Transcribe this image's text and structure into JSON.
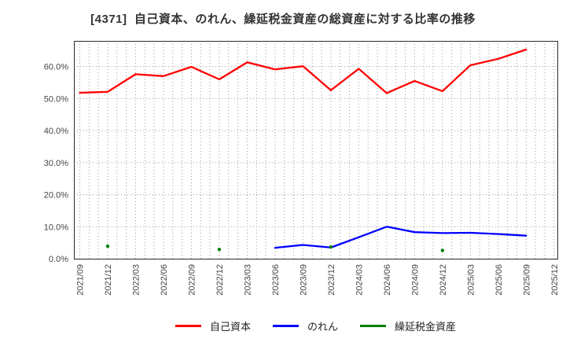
{
  "title": "[4371]  自己資本、のれん、繰延税金資産の総資産に対する比率の推移",
  "chart_data": {
    "type": "line",
    "categories": [
      "2021/09",
      "2021/12",
      "2022/03",
      "2022/06",
      "2022/09",
      "2022/12",
      "2023/03",
      "2023/06",
      "2023/09",
      "2023/12",
      "2024/03",
      "2024/06",
      "2024/09",
      "2024/12",
      "2025/03",
      "2025/06",
      "2025/09",
      "2025/12"
    ],
    "series": [
      {
        "name": "自己資本",
        "color": "#ff0000",
        "style": "line",
        "values": [
          51.8,
          52.1,
          57.6,
          57.0,
          59.9,
          56.0,
          61.3,
          59.1,
          60.1,
          52.6,
          59.3,
          51.7,
          55.5,
          52.3,
          60.4,
          62.4,
          65.3,
          null
        ]
      },
      {
        "name": "のれん",
        "color": "#0000ff",
        "style": "line",
        "values": [
          null,
          null,
          null,
          null,
          null,
          null,
          null,
          3.4,
          4.3,
          3.5,
          6.7,
          10.0,
          8.3,
          8.0,
          8.1,
          7.7,
          7.2,
          null
        ]
      },
      {
        "name": "繰延税金資産",
        "color": "#008000",
        "style": "points",
        "values": [
          null,
          3.9,
          null,
          null,
          null,
          2.9,
          null,
          null,
          null,
          3.7,
          null,
          null,
          null,
          2.6,
          null,
          null,
          null,
          null
        ]
      }
    ],
    "title": "[4371]  自己資本、のれん、繰延税金資産の総資産に対する比率の推移",
    "xlabel": "",
    "ylabel": "",
    "ylim": [
      0,
      68
    ],
    "yticks": [
      0,
      10,
      20,
      30,
      40,
      50,
      60
    ],
    "ytick_labels": [
      "0.0%",
      "10.0%",
      "20.0%",
      "30.0%",
      "40.0%",
      "50.0%",
      "60.0%"
    ],
    "grid": "dotted; horizontal at each 10% tick; vertical monthly (3 per quarter label)",
    "legend_position": "bottom-center"
  }
}
